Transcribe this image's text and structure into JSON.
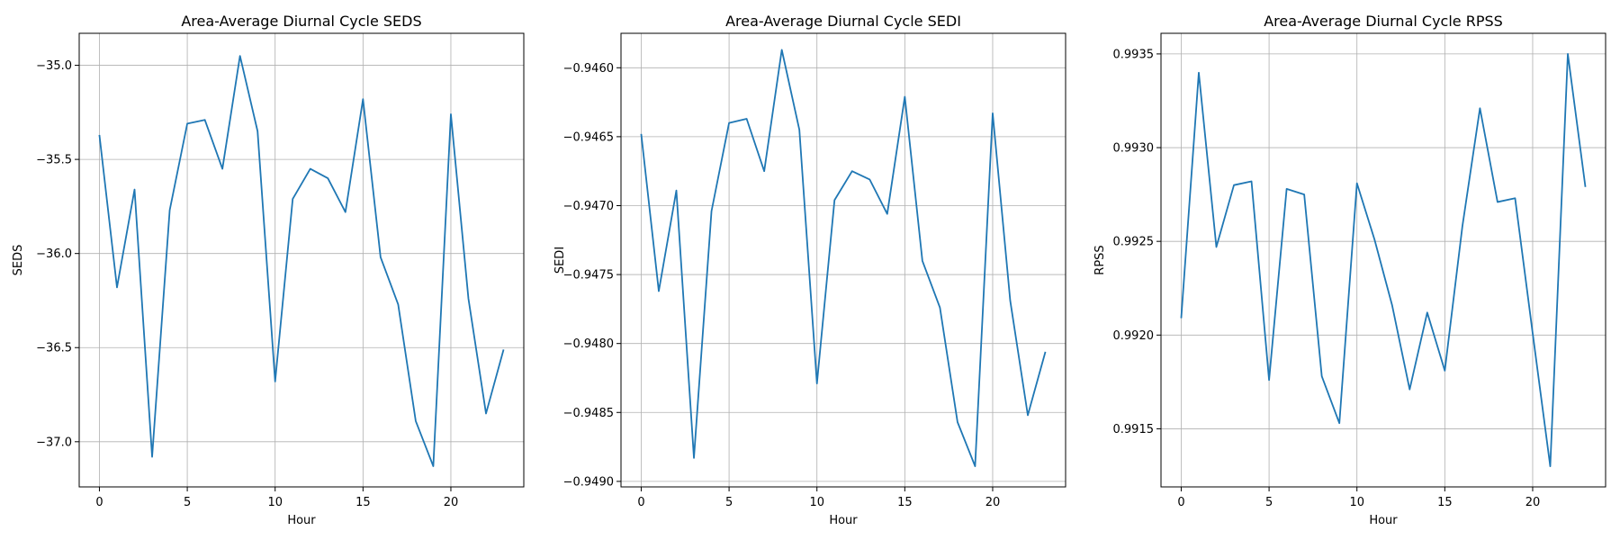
{
  "chart_data": [
    {
      "type": "line",
      "title": "Area-Average Diurnal Cycle SEDS",
      "xlabel": "Hour",
      "ylabel": "SEDS",
      "x": [
        0,
        1,
        2,
        3,
        4,
        5,
        6,
        7,
        8,
        9,
        10,
        11,
        12,
        13,
        14,
        15,
        16,
        17,
        18,
        19,
        20,
        21,
        22,
        23
      ],
      "series": [
        {
          "values": [
            -35.37,
            -36.18,
            -35.66,
            -37.08,
            -35.77,
            -35.31,
            -35.29,
            -35.55,
            -34.95,
            -35.35,
            -36.68,
            -35.71,
            -35.55,
            -35.6,
            -35.78,
            -35.18,
            -36.02,
            -36.27,
            -36.89,
            -37.13,
            -35.26,
            -36.24,
            -36.85,
            -36.51
          ]
        }
      ],
      "xlim": [
        -1.15,
        24.15
      ],
      "ylim": [
        -37.24,
        -34.83
      ],
      "xticks": [
        0,
        5,
        10,
        15,
        20
      ],
      "yticks": [
        -35.0,
        -35.5,
        -36.0,
        -36.5,
        -37.0
      ],
      "yticklabels": [
        "−35.0",
        "−35.5",
        "−36.0",
        "−36.5",
        "−37.0"
      ],
      "grid": true,
      "color": "#1f77b4"
    },
    {
      "type": "line",
      "title": "Area-Average Diurnal Cycle SEDI",
      "xlabel": "Hour",
      "ylabel": "SEDI",
      "x": [
        0,
        1,
        2,
        3,
        4,
        5,
        6,
        7,
        8,
        9,
        10,
        11,
        12,
        13,
        14,
        15,
        16,
        17,
        18,
        19,
        20,
        21,
        22,
        23
      ],
      "series": [
        {
          "values": [
            -0.94648,
            -0.94762,
            -0.94689,
            -0.94883,
            -0.94704,
            -0.9464,
            -0.94637,
            -0.94675,
            -0.94587,
            -0.94645,
            -0.94829,
            -0.94696,
            -0.94675,
            -0.94681,
            -0.94706,
            -0.94621,
            -0.9474,
            -0.94774,
            -0.94857,
            -0.94889,
            -0.94633,
            -0.94769,
            -0.94852,
            -0.94806
          ]
        }
      ],
      "xlim": [
        -1.15,
        24.15
      ],
      "ylim": [
        -0.94904,
        -0.94575
      ],
      "xticks": [
        0,
        5,
        10,
        15,
        20
      ],
      "yticks": [
        -0.946,
        -0.9465,
        -0.947,
        -0.9475,
        -0.948,
        -0.9485,
        -0.949
      ],
      "yticklabels": [
        "−0.9460",
        "−0.9465",
        "−0.9470",
        "−0.9475",
        "−0.9480",
        "−0.9485",
        "−0.9490"
      ],
      "grid": true,
      "color": "#1f77b4"
    },
    {
      "type": "line",
      "title": "Area-Average Diurnal Cycle RPSS",
      "xlabel": "Hour",
      "ylabel": "RPSS",
      "x": [
        0,
        1,
        2,
        3,
        4,
        5,
        6,
        7,
        8,
        9,
        10,
        11,
        12,
        13,
        14,
        15,
        16,
        17,
        18,
        19,
        20,
        21,
        22,
        23
      ],
      "series": [
        {
          "values": [
            0.99209,
            0.9934,
            0.99247,
            0.9928,
            0.99282,
            0.99176,
            0.99278,
            0.99275,
            0.99178,
            0.99153,
            0.99281,
            0.99251,
            0.99216,
            0.99171,
            0.99212,
            0.99181,
            0.99258,
            0.99321,
            0.99271,
            0.99273,
            0.99201,
            0.9913,
            0.9935,
            0.99279
          ]
        }
      ],
      "xlim": [
        -1.15,
        24.15
      ],
      "ylim": [
        0.99119,
        0.99361
      ],
      "xticks": [
        0,
        5,
        10,
        15,
        20
      ],
      "yticks": [
        0.9915,
        0.992,
        0.9925,
        0.993,
        0.9935
      ],
      "yticklabels": [
        "0.9915",
        "0.9920",
        "0.9925",
        "0.9930",
        "0.9935"
      ],
      "grid": true,
      "color": "#1f77b4"
    }
  ]
}
